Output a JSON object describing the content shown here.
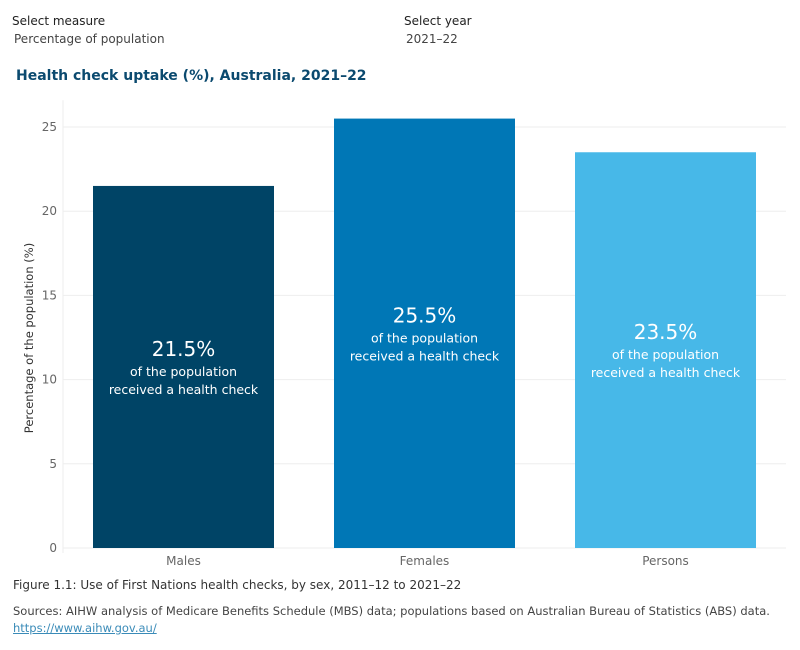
{
  "filters": {
    "measure": {
      "label": "Select measure",
      "value": "Percentage of population"
    },
    "year": {
      "label": "Select year",
      "value": "2021–22"
    }
  },
  "chart_data": {
    "type": "bar",
    "title": "Health check uptake (%), Australia, 2021–22",
    "ylabel": "Percentage of the population (%)",
    "xlabel": "",
    "categories": [
      "Males",
      "Females",
      "Persons"
    ],
    "values": [
      21.5,
      25.5,
      23.5
    ],
    "data_labels": [
      "21.5%",
      "25.5%",
      "23.5%"
    ],
    "label_sub1": "of the population",
    "label_sub2": "received a health check",
    "colors": [
      "#004466",
      "#0077b6",
      "#47b8e8"
    ],
    "ylim": [
      0,
      26
    ],
    "yticks": [
      0,
      5,
      10,
      15,
      20,
      25
    ],
    "grid": true
  },
  "footer": {
    "caption": "Figure 1.1: Use of First Nations health checks, by sex, 2011–12 to 2021–22",
    "sources": "Sources: AIHW analysis of Medicare Benefits Schedule (MBS) data; populations based on Australian Bureau of Statistics (ABS) data.",
    "link": "https://www.aihw.gov.au/"
  }
}
